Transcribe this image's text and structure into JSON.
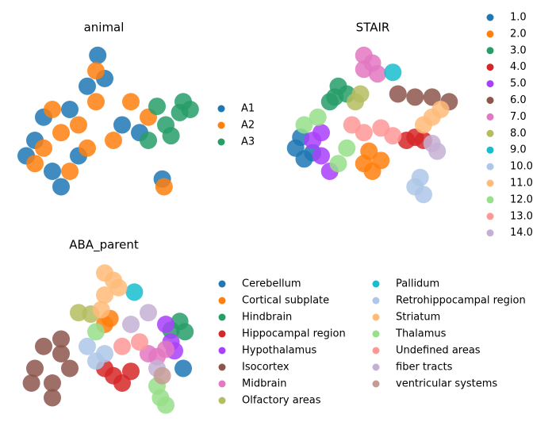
{
  "chart_data": [
    {
      "type": "scatter",
      "title": "animal",
      "legend": "right",
      "legend_columns": 1,
      "xlim": [
        0,
        10
      ],
      "ylim": [
        0,
        10
      ],
      "series": [
        {
          "name": "A1",
          "color": "#1f77b4",
          "x": [
            1,
            2,
            1.5,
            3,
            4.6,
            5,
            4,
            3.5,
            6,
            8.3,
            7,
            2.5,
            0.5
          ],
          "y": [
            4,
            2,
            5.5,
            6,
            9.5,
            8,
            7.5,
            3,
            5,
            1.5,
            4.5,
            1,
            3
          ]
        },
        {
          "name": "A2",
          "color": "#ff7f0e",
          "x": [
            1.5,
            2.5,
            3.5,
            4,
            3,
            1,
            2,
            4.5,
            5.5,
            8.4,
            4.5,
            6.5,
            7.5
          ],
          "y": [
            3.5,
            4.5,
            5,
            3.5,
            2,
            2.5,
            6,
            6.5,
            4,
            1,
            8.5,
            6.5,
            5.5
          ]
        },
        {
          "name": "A3",
          "color": "#279e68",
          "x": [
            8.5,
            9.3,
            9.5,
            8.8,
            7.5,
            8,
            9.9
          ],
          "y": [
            5,
            5.8,
            6.5,
            4.3,
            4,
            6.2,
            6
          ]
        }
      ]
    },
    {
      "type": "scatter",
      "title": "STAIR",
      "legend": "right",
      "legend_columns": 1,
      "xlim": [
        0,
        10
      ],
      "ylim": [
        0,
        10
      ],
      "series": [
        {
          "name": "1.0",
          "color": "#1f77b4",
          "x": [
            0.5,
            1,
            1.5,
            0.8
          ],
          "y": [
            3.5,
            2.8,
            3.2,
            4.2
          ]
        },
        {
          "name": "2.0",
          "color": "#ff7f0e",
          "x": [
            4.5,
            5,
            5.5,
            4.8
          ],
          "y": [
            2.5,
            2,
            2.7,
            3.3
          ]
        },
        {
          "name": "3.0",
          "color": "#279e68",
          "x": [
            2.5,
            3,
            3.5,
            2.8
          ],
          "y": [
            6.5,
            7.5,
            7,
            6.8
          ]
        },
        {
          "name": "4.0",
          "color": "#d62728",
          "x": [
            7,
            7.5,
            8
          ],
          "y": [
            4,
            4.2,
            4
          ]
        },
        {
          "name": "5.0",
          "color": "#aa40fc",
          "x": [
            1.5,
            2,
            2.5,
            2
          ],
          "y": [
            4,
            3,
            2,
            4.5
          ]
        },
        {
          "name": "6.0",
          "color": "#8c564b",
          "x": [
            6.5,
            7.5,
            8.5,
            9.5
          ],
          "y": [
            7,
            6.8,
            6.8,
            6.5
          ]
        },
        {
          "name": "7.0",
          "color": "#e377c2",
          "x": [
            4.5,
            5,
            4.5,
            5.3
          ],
          "y": [
            9.5,
            9,
            8.6,
            8.3
          ]
        },
        {
          "name": "8.0",
          "color": "#b5bd61",
          "x": [
            4,
            4.3
          ],
          "y": [
            6.5,
            7
          ]
        },
        {
          "name": "9.0",
          "color": "#17becf",
          "x": [
            6.2
          ],
          "y": [
            8.4
          ]
        },
        {
          "name": "10.0",
          "color": "#aec7e8",
          "x": [
            7.5,
            8,
            7.8
          ],
          "y": [
            1,
            0.5,
            1.6
          ]
        },
        {
          "name": "11.0",
          "color": "#ffbb78",
          "x": [
            8.5,
            9,
            8
          ],
          "y": [
            5.5,
            6,
            5
          ]
        },
        {
          "name": "12.0",
          "color": "#98df8a",
          "x": [
            1,
            3.5,
            3,
            1.8
          ],
          "y": [
            5,
            3.5,
            2.5,
            5.5
          ]
        },
        {
          "name": "13.0",
          "color": "#ff9896",
          "x": [
            4.5,
            5.5,
            6.2,
            3.8
          ],
          "y": [
            4.5,
            4.8,
            4.3,
            5
          ]
        },
        {
          "name": "14.0",
          "color": "#c5b0d5",
          "x": [
            8.5,
            8.8
          ],
          "y": [
            3.8,
            3.3
          ]
        }
      ]
    },
    {
      "type": "scatter",
      "title": "ABA_parent",
      "legend": "right",
      "legend_columns": 2,
      "xlim": [
        0,
        10
      ],
      "ylim": [
        0,
        10
      ],
      "series": [
        {
          "name": "Cerebellum",
          "color": "#1f77b4",
          "x": [
            9.5
          ],
          "y": [
            3
          ]
        },
        {
          "name": "Cortical subplate",
          "color": "#ff7f0e",
          "x": [
            5,
            5.3
          ],
          "y": [
            6,
            6.4
          ]
        },
        {
          "name": "Hindbrain",
          "color": "#279e68",
          "x": [
            9.3,
            9.6,
            8.8
          ],
          "y": [
            6.2,
            5.5,
            5.6
          ]
        },
        {
          "name": "Hippocampal region",
          "color": "#d62728",
          "x": [
            5.5,
            6,
            6.5,
            5
          ],
          "y": [
            2.5,
            2,
            2.8,
            3
          ]
        },
        {
          "name": "Hypothalamus",
          "color": "#aa40fc",
          "x": [
            8.5,
            8.8,
            9
          ],
          "y": [
            6,
            4.8,
            4.2
          ]
        },
        {
          "name": "Isocortex",
          "color": "#8c564b",
          "x": [
            1,
            2,
            2.5,
            1.5,
            2,
            0.8,
            3,
            2.5
          ],
          "y": [
            3,
            2,
            4,
            4.5,
            1,
            2,
            3,
            5
          ]
        },
        {
          "name": "Midbrain",
          "color": "#e377c2",
          "x": [
            7.5,
            8.5,
            8
          ],
          "y": [
            4,
            4.3,
            3.8
          ]
        },
        {
          "name": "Olfactory areas",
          "color": "#b5bd61",
          "x": [
            3.5,
            4.2
          ],
          "y": [
            6.8,
            6.7
          ]
        },
        {
          "name": "Pallidum",
          "color": "#17becf",
          "x": [
            6.7
          ],
          "y": [
            8.2
          ]
        },
        {
          "name": "Retrohippocampal region",
          "color": "#aec7e8",
          "x": [
            4.5,
            4,
            5
          ],
          "y": [
            3.5,
            4.5,
            4
          ]
        },
        {
          "name": "Striatum",
          "color": "#ffbb78",
          "x": [
            5,
            5.5,
            5,
            5.8,
            4.8
          ],
          "y": [
            9.5,
            9,
            8,
            8.5,
            7
          ]
        },
        {
          "name": "Thalamus",
          "color": "#98df8a",
          "x": [
            8.2,
            8.5,
            8,
            4.5
          ],
          "y": [
            1,
            0.5,
            1.8,
            5.5
          ]
        },
        {
          "name": "Undefined areas",
          "color": "#ff9896",
          "x": [
            6,
            7
          ],
          "y": [
            4.5,
            4.8
          ]
        },
        {
          "name": "fiber tracts",
          "color": "#c5b0d5",
          "x": [
            6.5,
            7.5,
            8
          ],
          "y": [
            6,
            6.8,
            3
          ]
        },
        {
          "name": "ventricular systems",
          "color": "#c49c94",
          "x": [
            8.3
          ],
          "y": [
            2.5
          ]
        }
      ]
    }
  ]
}
